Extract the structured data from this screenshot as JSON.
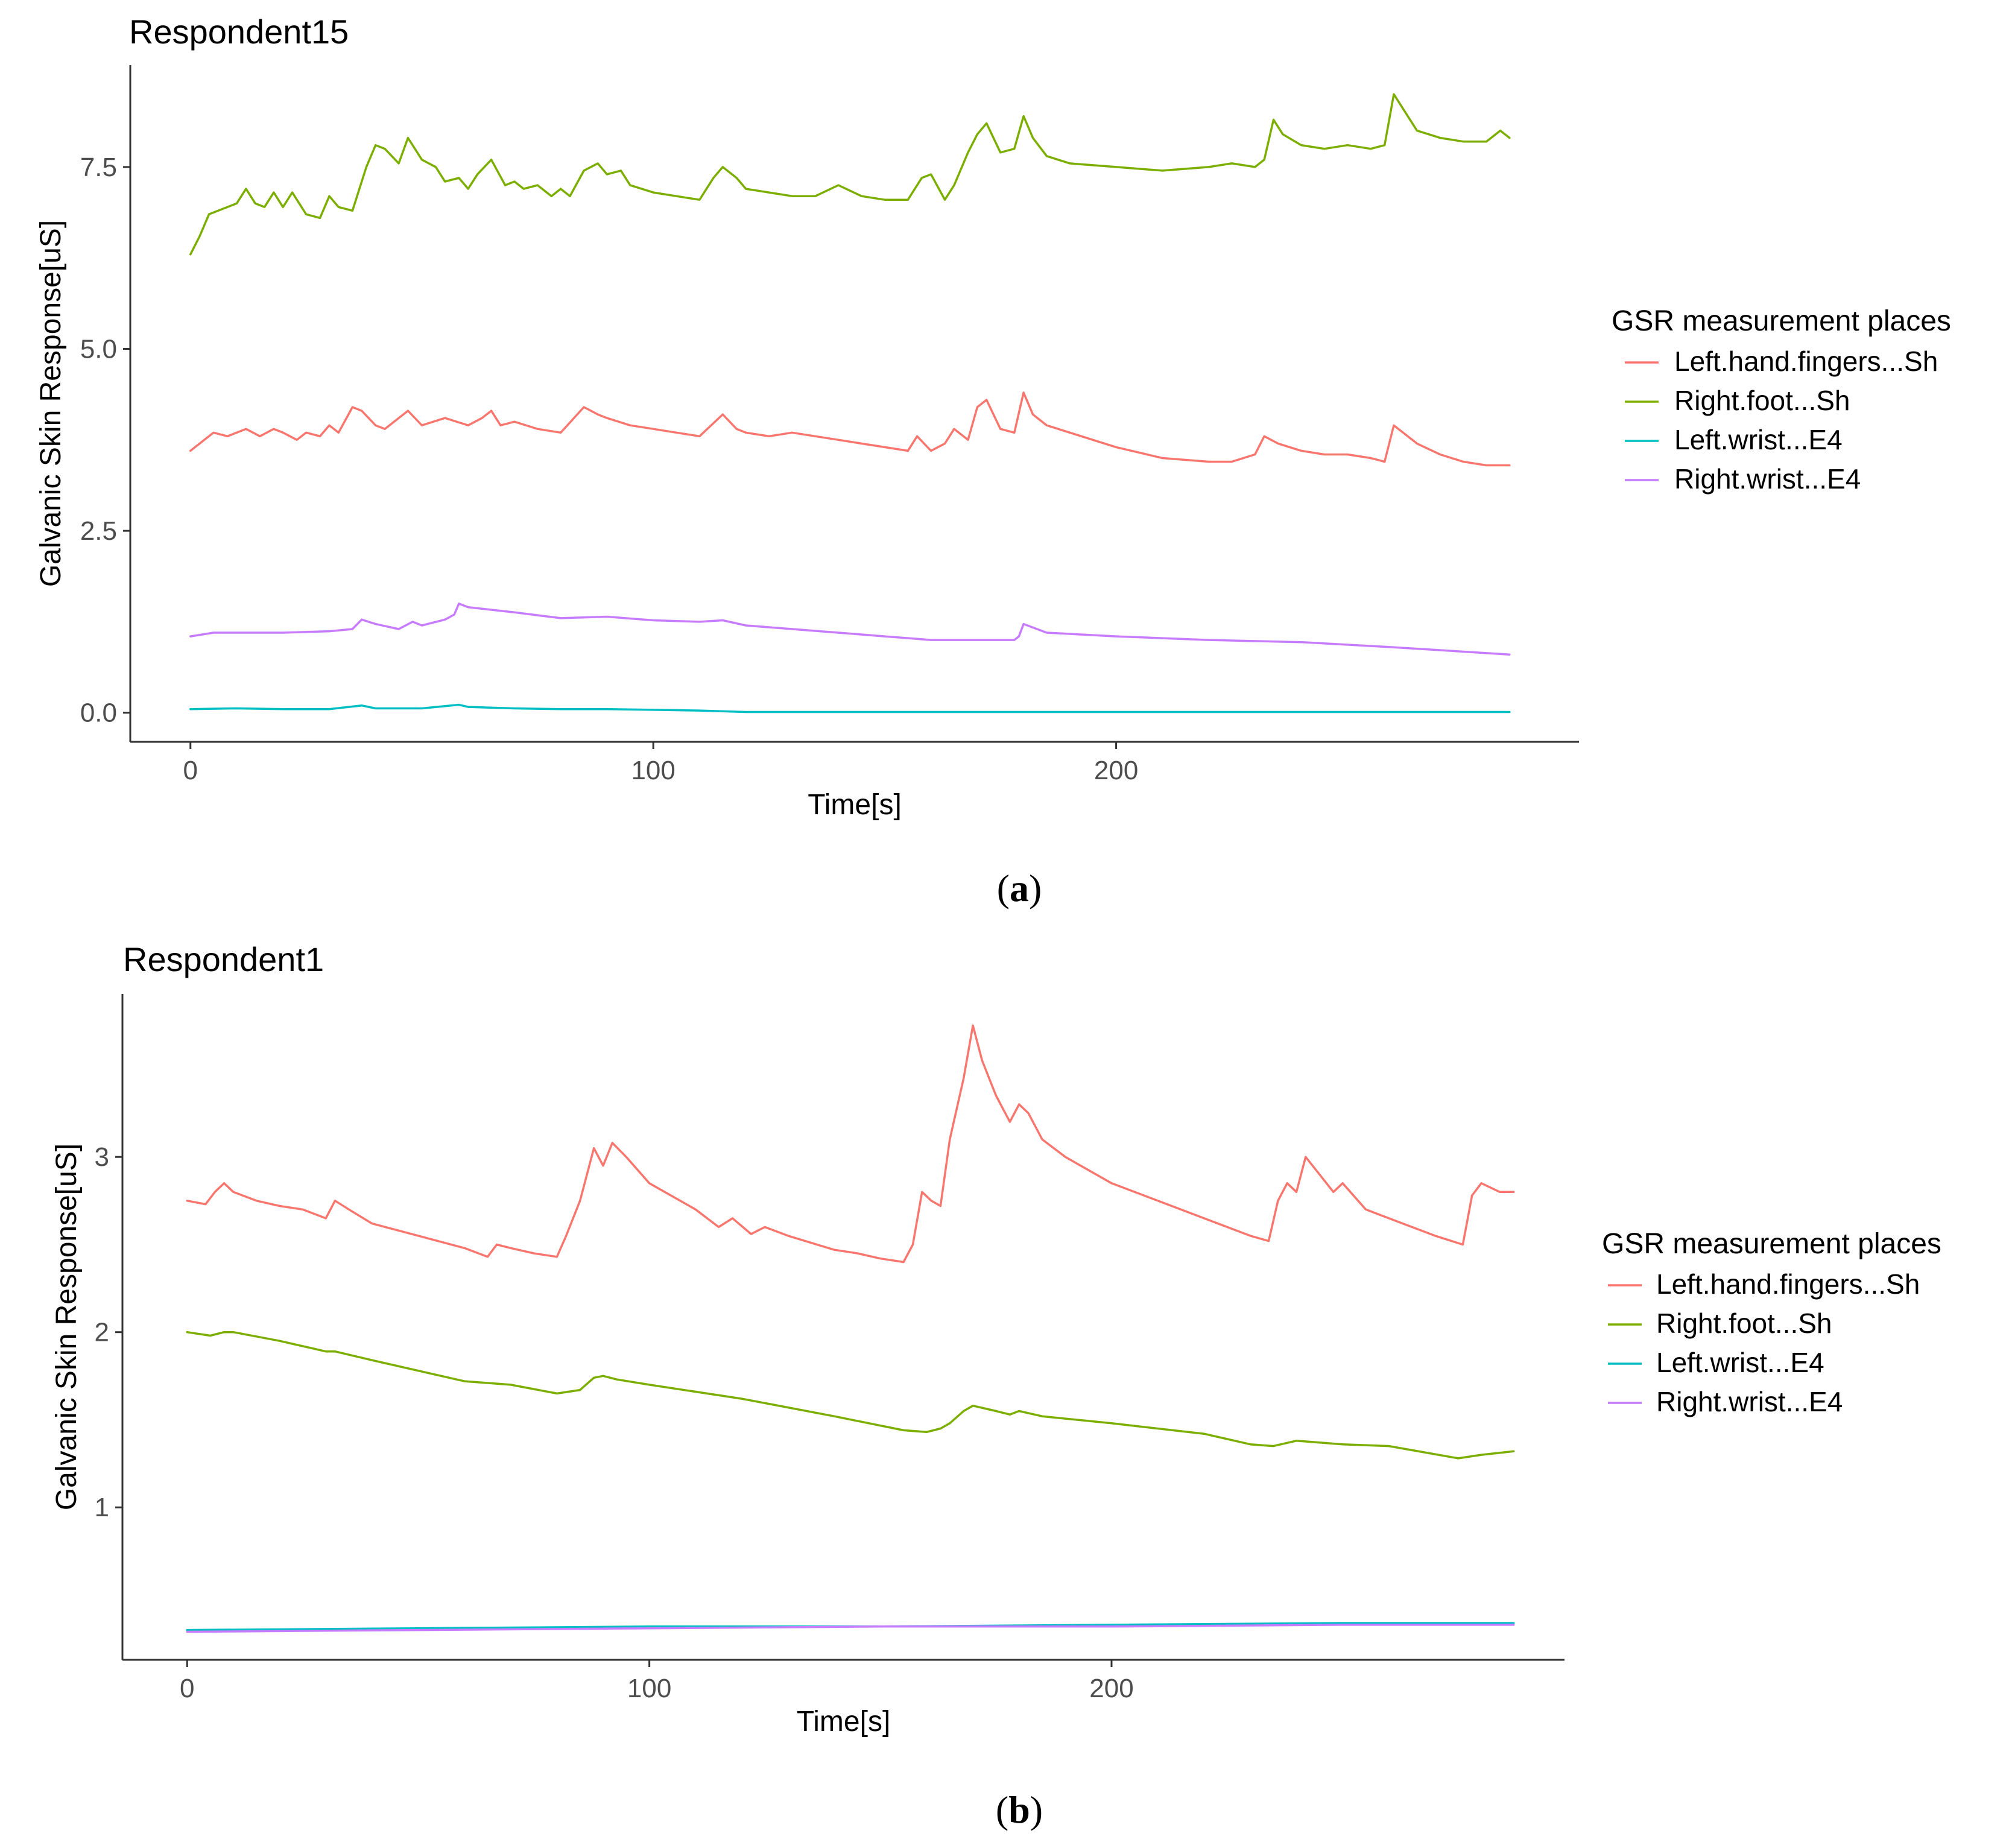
{
  "chart_data": [
    {
      "type": "line",
      "title": "Respondent15",
      "xlabel": "Time[s]",
      "ylabel": "Galvanic Skin Response[uS]",
      "xlim": [
        -13,
        300
      ],
      "ylim": [
        -0.4,
        8.9
      ],
      "xticks": [
        0,
        100,
        200
      ],
      "yticks": [
        0.0,
        2.5,
        5.0,
        7.5
      ],
      "ytick_labels": [
        "0.0",
        "2.5",
        "5.0",
        "7.5"
      ],
      "xtick_labels": [
        "0",
        "100",
        "200"
      ],
      "legend": {
        "title": "GSR measurement places",
        "position": "right"
      },
      "caption": "a",
      "series": [
        {
          "name": "Left.hand.fingers...Sh",
          "color": "#F8766D",
          "x": [
            0,
            3,
            5,
            8,
            12,
            15,
            18,
            20,
            23,
            25,
            28,
            30,
            32,
            35,
            37,
            40,
            42,
            45,
            47,
            50,
            55,
            60,
            63,
            65,
            67,
            70,
            75,
            80,
            85,
            88,
            90,
            95,
            100,
            105,
            110,
            115,
            118,
            120,
            125,
            130,
            135,
            140,
            145,
            150,
            155,
            157,
            160,
            163,
            165,
            168,
            170,
            172,
            175,
            178,
            180,
            182,
            185,
            190,
            200,
            210,
            220,
            225,
            230,
            232,
            235,
            240,
            245,
            250,
            255,
            258,
            260,
            265,
            270,
            275,
            280,
            285
          ],
          "values": [
            3.6,
            3.75,
            3.85,
            3.8,
            3.9,
            3.8,
            3.9,
            3.85,
            3.75,
            3.85,
            3.8,
            3.95,
            3.85,
            4.2,
            4.15,
            3.95,
            3.9,
            4.05,
            4.15,
            3.95,
            4.05,
            3.95,
            4.05,
            4.15,
            3.95,
            4.0,
            3.9,
            3.85,
            4.2,
            4.1,
            4.05,
            3.95,
            3.9,
            3.85,
            3.8,
            4.1,
            3.9,
            3.85,
            3.8,
            3.85,
            3.8,
            3.75,
            3.7,
            3.65,
            3.6,
            3.8,
            3.6,
            3.7,
            3.9,
            3.75,
            4.2,
            4.3,
            3.9,
            3.85,
            4.4,
            4.1,
            3.95,
            3.85,
            3.65,
            3.5,
            3.45,
            3.45,
            3.55,
            3.8,
            3.7,
            3.6,
            3.55,
            3.55,
            3.5,
            3.45,
            3.95,
            3.7,
            3.55,
            3.45,
            3.4,
            3.4
          ]
        },
        {
          "name": "Right.foot...Sh",
          "color": "#7CAE00",
          "x": [
            0,
            2,
            4,
            6,
            8,
            10,
            12,
            14,
            16,
            18,
            20,
            22,
            25,
            28,
            30,
            32,
            35,
            38,
            40,
            42,
            45,
            47,
            50,
            53,
            55,
            58,
            60,
            62,
            65,
            68,
            70,
            72,
            75,
            78,
            80,
            82,
            85,
            88,
            90,
            93,
            95,
            100,
            105,
            110,
            113,
            115,
            118,
            120,
            125,
            130,
            135,
            140,
            145,
            150,
            155,
            158,
            160,
            163,
            165,
            168,
            170,
            172,
            175,
            178,
            180,
            182,
            185,
            190,
            200,
            210,
            220,
            225,
            230,
            232,
            234,
            236,
            240,
            245,
            250,
            255,
            258,
            260,
            262,
            265,
            270,
            275,
            280,
            283,
            285
          ],
          "values": [
            6.3,
            6.55,
            6.85,
            6.9,
            6.95,
            7.0,
            7.2,
            7.0,
            6.95,
            7.15,
            6.95,
            7.15,
            6.85,
            6.8,
            7.1,
            6.95,
            6.9,
            7.5,
            7.8,
            7.75,
            7.55,
            7.9,
            7.6,
            7.5,
            7.3,
            7.35,
            7.2,
            7.4,
            7.6,
            7.25,
            7.3,
            7.2,
            7.25,
            7.1,
            7.2,
            7.1,
            7.45,
            7.55,
            7.4,
            7.45,
            7.25,
            7.15,
            7.1,
            7.05,
            7.35,
            7.5,
            7.35,
            7.2,
            7.15,
            7.1,
            7.1,
            7.25,
            7.1,
            7.05,
            7.05,
            7.35,
            7.4,
            7.05,
            7.25,
            7.7,
            7.95,
            8.1,
            7.7,
            7.75,
            8.2,
            7.9,
            7.65,
            7.55,
            7.5,
            7.45,
            7.5,
            7.55,
            7.5,
            7.6,
            8.15,
            7.95,
            7.8,
            7.75,
            7.8,
            7.75,
            7.8,
            8.5,
            8.3,
            8.0,
            7.9,
            7.85,
            7.85,
            8.0,
            7.9
          ]
        },
        {
          "name": "Left.wrist...E4",
          "color": "#00BFC4",
          "x": [
            0,
            10,
            20,
            30,
            37,
            40,
            50,
            58,
            60,
            70,
            80,
            90,
            100,
            110,
            120,
            130,
            150,
            200,
            250,
            285
          ],
          "values": [
            0.05,
            0.06,
            0.05,
            0.05,
            0.1,
            0.06,
            0.06,
            0.11,
            0.08,
            0.06,
            0.05,
            0.05,
            0.04,
            0.03,
            0.01,
            0.01,
            0.01,
            0.01,
            0.01,
            0.01
          ]
        },
        {
          "name": "Right.wrist...E4",
          "color": "#C77CFF",
          "x": [
            0,
            5,
            10,
            20,
            30,
            35,
            37,
            40,
            45,
            48,
            50,
            55,
            57,
            58,
            60,
            70,
            80,
            90,
            100,
            110,
            115,
            120,
            130,
            140,
            150,
            160,
            170,
            178,
            179,
            180,
            185,
            200,
            220,
            240,
            260,
            285
          ],
          "values": [
            1.05,
            1.1,
            1.1,
            1.1,
            1.12,
            1.15,
            1.28,
            1.22,
            1.15,
            1.25,
            1.2,
            1.28,
            1.35,
            1.5,
            1.45,
            1.38,
            1.3,
            1.32,
            1.27,
            1.25,
            1.27,
            1.2,
            1.15,
            1.1,
            1.05,
            1.0,
            1.0,
            1.0,
            1.05,
            1.22,
            1.1,
            1.05,
            1.0,
            0.97,
            0.9,
            0.8
          ]
        }
      ]
    },
    {
      "type": "line",
      "title": "Respondent1",
      "xlabel": "Time[s]",
      "ylabel": "Galvanic Skin Response[uS]",
      "xlim": [
        -14,
        298
      ],
      "ylim": [
        0.13,
        3.93
      ],
      "xticks": [
        0,
        100,
        200
      ],
      "yticks": [
        1,
        2,
        3
      ],
      "ytick_labels": [
        "1",
        "2",
        "3"
      ],
      "xtick_labels": [
        "0",
        "100",
        "200"
      ],
      "legend": {
        "title": "GSR measurement places",
        "position": "right"
      },
      "caption": "b",
      "series": [
        {
          "name": "Left.hand.fingers...Sh",
          "color": "#F8766D",
          "x": [
            0,
            4,
            6,
            8,
            10,
            15,
            20,
            25,
            30,
            32,
            35,
            40,
            50,
            60,
            65,
            67,
            70,
            75,
            80,
            82,
            85,
            88,
            90,
            92,
            95,
            100,
            110,
            115,
            118,
            122,
            125,
            130,
            140,
            145,
            150,
            155,
            157,
            159,
            161,
            163,
            165,
            168,
            170,
            172,
            175,
            178,
            180,
            182,
            185,
            190,
            200,
            210,
            220,
            230,
            234,
            236,
            238,
            240,
            242,
            245,
            248,
            250,
            255,
            260,
            270,
            276,
            278,
            280,
            284,
            287
          ],
          "values": [
            2.75,
            2.73,
            2.8,
            2.85,
            2.8,
            2.75,
            2.72,
            2.7,
            2.65,
            2.75,
            2.7,
            2.62,
            2.55,
            2.48,
            2.43,
            2.5,
            2.48,
            2.45,
            2.43,
            2.55,
            2.75,
            3.05,
            2.95,
            3.08,
            3.0,
            2.85,
            2.7,
            2.6,
            2.65,
            2.56,
            2.6,
            2.55,
            2.47,
            2.45,
            2.42,
            2.4,
            2.5,
            2.8,
            2.75,
            2.72,
            3.1,
            3.45,
            3.75,
            3.55,
            3.35,
            3.2,
            3.3,
            3.25,
            3.1,
            3.0,
            2.85,
            2.75,
            2.65,
            2.55,
            2.52,
            2.75,
            2.85,
            2.8,
            3.0,
            2.9,
            2.8,
            2.85,
            2.7,
            2.65,
            2.55,
            2.5,
            2.78,
            2.85,
            2.8,
            2.8
          ]
        },
        {
          "name": "Right.foot...Sh",
          "color": "#7CAE00",
          "x": [
            0,
            5,
            8,
            10,
            20,
            30,
            32,
            40,
            60,
            70,
            80,
            85,
            88,
            90,
            93,
            100,
            120,
            140,
            155,
            160,
            163,
            165,
            168,
            170,
            175,
            178,
            180,
            185,
            200,
            220,
            230,
            235,
            240,
            250,
            260,
            275,
            280,
            287
          ],
          "values": [
            2.0,
            1.98,
            2.0,
            2.0,
            1.95,
            1.89,
            1.89,
            1.84,
            1.72,
            1.7,
            1.65,
            1.67,
            1.74,
            1.75,
            1.73,
            1.7,
            1.62,
            1.52,
            1.44,
            1.43,
            1.45,
            1.48,
            1.55,
            1.58,
            1.55,
            1.53,
            1.55,
            1.52,
            1.48,
            1.42,
            1.36,
            1.35,
            1.38,
            1.36,
            1.35,
            1.28,
            1.3,
            1.32
          ]
        },
        {
          "name": "Left.wrist...E4",
          "color": "#00BFC4",
          "x": [
            0,
            50,
            100,
            150,
            200,
            250,
            287
          ],
          "values": [
            0.3,
            0.31,
            0.32,
            0.32,
            0.33,
            0.34,
            0.34
          ]
        },
        {
          "name": "Right.wrist...E4",
          "color": "#C77CFF",
          "x": [
            0,
            50,
            100,
            150,
            200,
            250,
            287
          ],
          "values": [
            0.29,
            0.3,
            0.31,
            0.32,
            0.32,
            0.33,
            0.33
          ]
        }
      ]
    }
  ]
}
